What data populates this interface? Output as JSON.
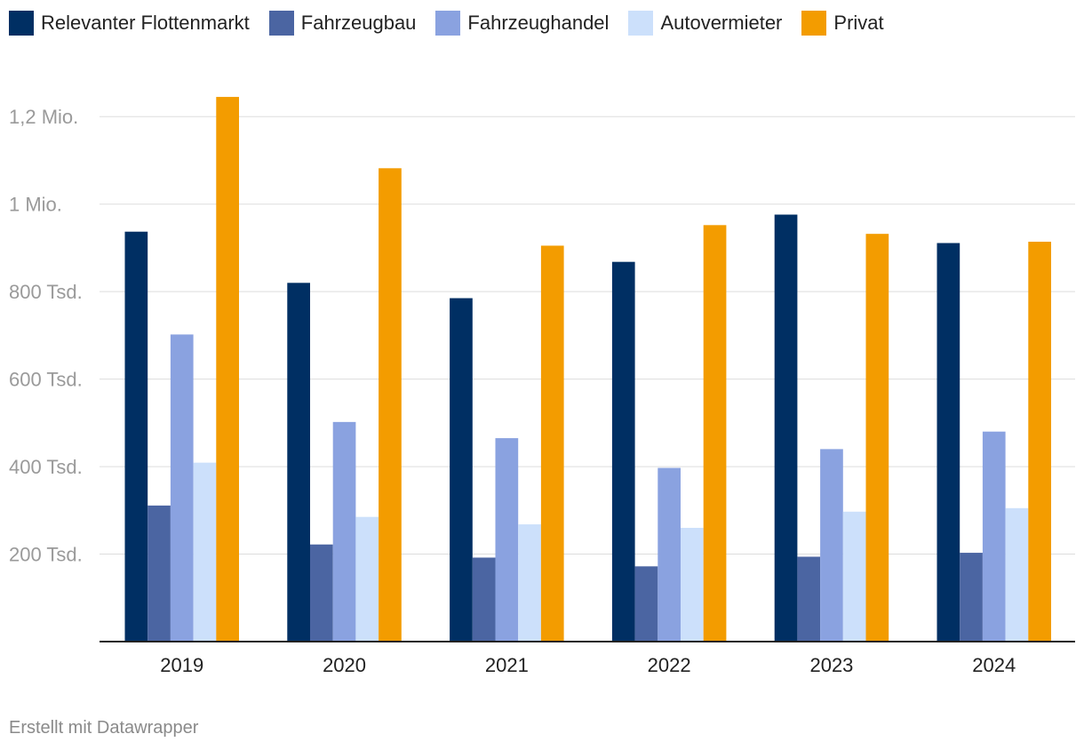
{
  "chart_data": {
    "type": "bar",
    "categories": [
      "2019",
      "2020",
      "2021",
      "2022",
      "2023",
      "2024"
    ],
    "series": [
      {
        "name": "Relevanter Flottenmarkt",
        "color": "#002f63",
        "values": [
          937000,
          820000,
          785000,
          868000,
          976000,
          911000
        ]
      },
      {
        "name": "Fahrzeugbau",
        "color": "#4b65a2",
        "values": [
          311000,
          222000,
          192000,
          172000,
          194000,
          203000
        ]
      },
      {
        "name": "Fahrzeughandel",
        "color": "#8aa2e0",
        "values": [
          702000,
          502000,
          465000,
          397000,
          440000,
          480000
        ]
      },
      {
        "name": "Autovermieter",
        "color": "#cce0fb",
        "values": [
          409000,
          285000,
          268000,
          260000,
          297000,
          305000
        ]
      },
      {
        "name": "Privat",
        "color": "#f39c00",
        "values": [
          1245000,
          1082000,
          905000,
          952000,
          932000,
          914000
        ]
      }
    ],
    "yticks": [
      {
        "value": 200000,
        "label": "200 Tsd."
      },
      {
        "value": 400000,
        "label": "400 Tsd."
      },
      {
        "value": 600000,
        "label": "600 Tsd."
      },
      {
        "value": 800000,
        "label": "800 Tsd."
      },
      {
        "value": 1000000,
        "label": "1 Mio."
      },
      {
        "value": 1200000,
        "label": "1,2 Mio."
      }
    ],
    "ylim": [
      0,
      1300000
    ],
    "grid": true,
    "legend_position": "top-left"
  },
  "footer": {
    "credit": "Erstellt mit Datawrapper"
  }
}
